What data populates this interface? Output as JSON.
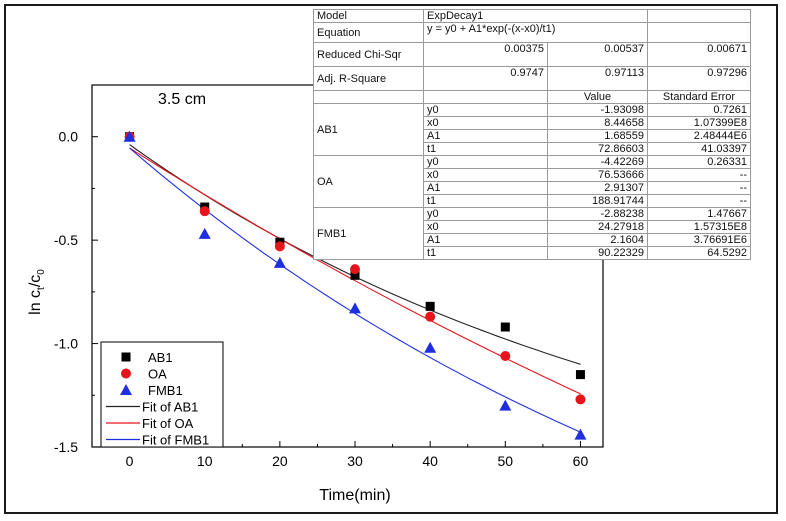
{
  "chart_data": {
    "type": "scatter",
    "annotation": "3.5 cm",
    "xlabel": "Time(min)",
    "ylabel_main": "ln c",
    "ylabel_sub1": "t",
    "ylabel_mid": "/c",
    "ylabel_sub2": "0",
    "xlim": [
      -5,
      63
    ],
    "ylim": [
      -1.5,
      0.25
    ],
    "xticks": [
      0,
      10,
      20,
      30,
      40,
      50,
      60
    ],
    "xtick_labels": [
      "0",
      "10",
      "20",
      "30",
      "40",
      "50",
      "60"
    ],
    "yticks": [
      0.0,
      -0.5,
      -1.0,
      -1.5
    ],
    "ytick_labels": [
      "0.0",
      "-0.5",
      "-1.0",
      "-1.5"
    ],
    "legend_position": "bottom-left",
    "series": [
      {
        "name": "AB1",
        "marker": "square",
        "color": "#000000",
        "x": [
          0,
          10,
          20,
          30,
          40,
          50,
          60
        ],
        "y": [
          0.0,
          -0.34,
          -0.51,
          -0.67,
          -0.82,
          -0.92,
          -1.15
        ]
      },
      {
        "name": "OA",
        "marker": "circle",
        "color": "#e8141b",
        "x": [
          0,
          10,
          20,
          30,
          40,
          50,
          60
        ],
        "y": [
          0.0,
          -0.36,
          -0.53,
          -0.64,
          -0.87,
          -1.06,
          -1.27
        ]
      },
      {
        "name": "FMB1",
        "marker": "triangle",
        "color": "#1f2fe0",
        "x": [
          0,
          10,
          20,
          30,
          40,
          50,
          60
        ],
        "y": [
          0.0,
          -0.47,
          -0.61,
          -0.83,
          -1.02,
          -1.3,
          -1.44
        ]
      }
    ],
    "fits": [
      {
        "name": "Fit of AB1",
        "color": "#222222",
        "y0": -1.93098,
        "x0": 8.44658,
        "A1": 1.68559,
        "t1": 72.86603
      },
      {
        "name": "Fit of OA",
        "color": "#e8141b",
        "y0": -4.42269,
        "x0": 76.53666,
        "A1": 2.91307,
        "t1": 188.91744
      },
      {
        "name": "Fit of FMB1",
        "color": "#1f2fe0",
        "y0": -2.88238,
        "x0": 24.27918,
        "A1": 2.1604,
        "t1": 90.22329
      }
    ]
  },
  "table": {
    "model_label": "Model",
    "model_value": "ExpDecay1",
    "equation_label": "Equation",
    "equation_value": "y = y0 + A1*exp(-(x-x0)/t1)",
    "chisqr_label": "Reduced Chi-Sqr",
    "chisqr_values": [
      "0.00375",
      "0.00537",
      "0.00671"
    ],
    "r2_label": "Adj. R-Square",
    "r2_values": [
      "0.9747",
      "0.97113",
      "0.97296"
    ],
    "col_value": "Value",
    "col_error": "Standard Error",
    "groups": [
      {
        "name": "AB1",
        "params": [
          {
            "p": "y0",
            "v": "-1.93098",
            "e": "0.7261"
          },
          {
            "p": "x0",
            "v": "8.44658",
            "e": "1.07399E8"
          },
          {
            "p": "A1",
            "v": "1.68559",
            "e": "2.48444E6"
          },
          {
            "p": "t1",
            "v": "72.86603",
            "e": "41.03397"
          }
        ]
      },
      {
        "name": "OA",
        "params": [
          {
            "p": "y0",
            "v": "-4.42269",
            "e": "0.26331"
          },
          {
            "p": "x0",
            "v": "76.53666",
            "e": "--"
          },
          {
            "p": "A1",
            "v": "2.91307",
            "e": "--"
          },
          {
            "p": "t1",
            "v": "188.91744",
            "e": "--"
          }
        ]
      },
      {
        "name": "FMB1",
        "params": [
          {
            "p": "y0",
            "v": "-2.88238",
            "e": "1.47667"
          },
          {
            "p": "x0",
            "v": "24.27918",
            "e": "1.57315E8"
          },
          {
            "p": "A1",
            "v": "2.1604",
            "e": "3.76691E6"
          },
          {
            "p": "t1",
            "v": "90.22329",
            "e": "64.5292"
          }
        ]
      }
    ]
  }
}
